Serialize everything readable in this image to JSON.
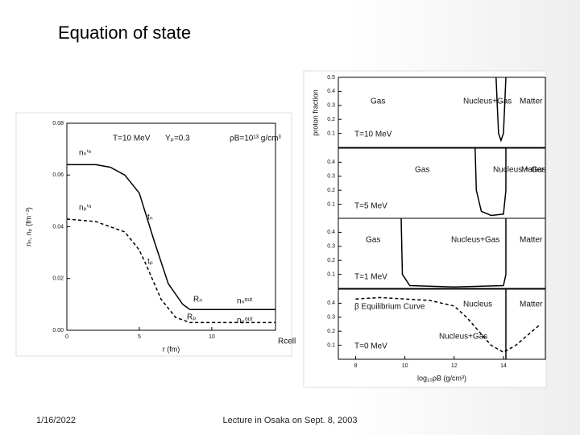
{
  "title": "Equation of state",
  "footer": {
    "date": "1/16/2022",
    "text": "Lecture in Osaka on Sept. 8, 2003"
  },
  "chart_data": [
    {
      "type": "line",
      "xlabel": "r (fm)",
      "ylabel": "nₙ, nₚ (fm⁻³)",
      "xlim": [
        0,
        14.4
      ],
      "ylim": [
        0,
        0.08
      ],
      "xticks": [
        0,
        5,
        10
      ],
      "yticks": [
        {
          "value": 0,
          "label": "0.00"
        },
        {
          "value": 0.02,
          "label": "0.02"
        },
        {
          "value": 0.04,
          "label": "0.04"
        },
        {
          "value": 0.06,
          "label": "0.06"
        },
        {
          "value": 0.08,
          "label": "0.08"
        }
      ],
      "annotations": [
        "T=10 MeV",
        "Yₚ=0.3",
        "ρB=10¹³ g/cm³",
        "nₙⁱⁿ",
        "nₚⁱⁿ",
        "tₙ",
        "tₚ",
        "Rₙ",
        "Rₚ",
        "nₙᵒᵘᵗ",
        "nₚᵒᵘᵗ",
        "Rcell"
      ],
      "series": [
        {
          "color": "#000000",
          "dashed": false,
          "x": [
            0,
            2,
            3,
            4,
            5,
            6,
            7,
            8,
            8.5,
            9,
            14.4
          ],
          "values": [
            0.064,
            0.064,
            0.063,
            0.06,
            0.053,
            0.035,
            0.018,
            0.01,
            0.008,
            0.008,
            0.008
          ]
        },
        {
          "color": "#000000",
          "dashed": true,
          "x": [
            0,
            2,
            4,
            5,
            5.5,
            6.5,
            7.5,
            8.5,
            9,
            14.4
          ],
          "values": [
            0.043,
            0.042,
            0.038,
            0.031,
            0.025,
            0.012,
            0.005,
            0.003,
            0.003,
            0.003
          ]
        }
      ]
    },
    {
      "type": "line",
      "ylabel": "proton fraction",
      "xlim": [
        7.3,
        15.7
      ],
      "ylim": [
        0,
        0.5
      ],
      "yticks": [
        0.1,
        0.2,
        0.3,
        0.4,
        0.5
      ],
      "annotations": [
        "Gas",
        "Nucleus+Gas",
        "Matter",
        "T=10 MeV"
      ],
      "series": [
        {
          "color": "#000000",
          "dashed": false,
          "x": [
            13.7,
            13.75,
            13.8,
            13.9,
            14.0,
            14.05,
            14.1
          ],
          "values": [
            0.5,
            0.3,
            0.1,
            0.05,
            0.1,
            0.3,
            0.5
          ]
        }
      ]
    },
    {
      "type": "line",
      "xlim": [
        7.3,
        15.7
      ],
      "ylim": [
        0,
        0.5
      ],
      "yticks": [
        0.1,
        0.2,
        0.3,
        0.4
      ],
      "annotations": [
        "Gas",
        "Nucleus + Gas",
        "Matter",
        "T=5 MeV"
      ],
      "series": [
        {
          "color": "#000000",
          "dashed": false,
          "x": [
            12.85,
            12.9,
            13.1,
            13.5,
            14.0,
            14.1,
            14.1
          ],
          "values": [
            0.5,
            0.2,
            0.05,
            0.02,
            0.03,
            0.2,
            0.5
          ]
        }
      ]
    },
    {
      "type": "line",
      "xlim": [
        7.3,
        15.7
      ],
      "ylim": [
        0,
        0.5
      ],
      "yticks": [
        0.1,
        0.2,
        0.3,
        0.4
      ],
      "annotations": [
        "Gas",
        "Nucleus+Gas",
        "Matter",
        "T=1 MeV"
      ],
      "series": [
        {
          "color": "#000000",
          "dashed": false,
          "x": [
            9.85,
            9.9,
            10.2,
            12,
            14,
            14.1,
            14.1
          ],
          "values": [
            0.5,
            0.1,
            0.02,
            0.01,
            0.02,
            0.1,
            0.5
          ]
        }
      ]
    },
    {
      "type": "line",
      "xlabel": "log₁₀ρB (g/cm³)",
      "xlim": [
        7.3,
        15.7
      ],
      "ylim": [
        0,
        0.5
      ],
      "yticks": [
        0.1,
        0.2,
        0.3,
        0.4
      ],
      "xticks": [
        8,
        10,
        12,
        14
      ],
      "annotations": [
        "β Equilibrium Curve",
        "Nucleus",
        "Matter",
        "Nucleus+Gas",
        "T=0 MeV"
      ],
      "series": [
        {
          "color": "#000000",
          "dashed": false,
          "x": [
            14.1,
            14.1
          ],
          "values": [
            0,
            0.5
          ]
        },
        {
          "color": "#000000",
          "dashed": true,
          "x": [
            8,
            9,
            10,
            11,
            12,
            12.5,
            13,
            13.5,
            14,
            14.5,
            15.5
          ],
          "values": [
            0.43,
            0.44,
            0.43,
            0.42,
            0.38,
            0.3,
            0.2,
            0.1,
            0.05,
            0.1,
            0.25
          ]
        }
      ]
    }
  ]
}
